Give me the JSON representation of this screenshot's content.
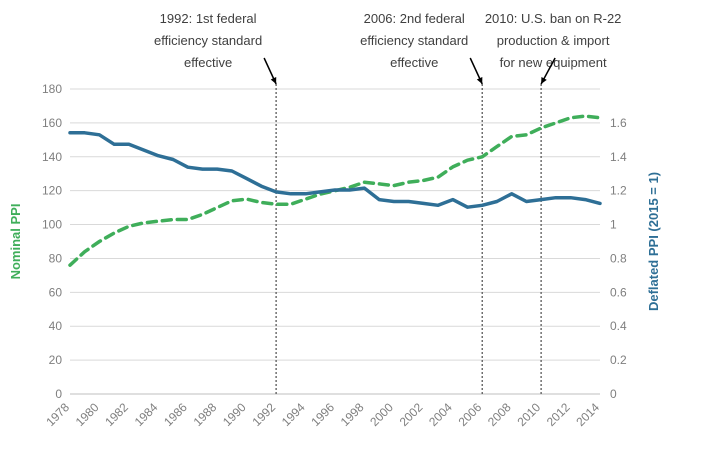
{
  "chart_data": {
    "type": "line",
    "x": [
      1978,
      1979,
      1980,
      1981,
      1982,
      1983,
      1984,
      1985,
      1986,
      1987,
      1988,
      1989,
      1990,
      1991,
      1992,
      1993,
      1994,
      1995,
      1996,
      1997,
      1998,
      1999,
      2000,
      2001,
      2002,
      2003,
      2004,
      2005,
      2006,
      2007,
      2008,
      2009,
      2010,
      2011,
      2012,
      2013,
      2014
    ],
    "x_tick_labels": [
      "1978",
      "1980",
      "1982",
      "1984",
      "1986",
      "1988",
      "1990",
      "1992",
      "1994",
      "1996",
      "1998",
      "2000",
      "2002",
      "2004",
      "2006",
      "2008",
      "2010",
      "2012",
      "2014"
    ],
    "xlim": [
      1978,
      2014
    ],
    "y_left": {
      "label": "Nominal PPI",
      "ylim": [
        0,
        180
      ],
      "ticks": [
        "0",
        "20",
        "40",
        "60",
        "80",
        "100",
        "120",
        "140",
        "160",
        "180"
      ]
    },
    "y_right": {
      "label": "Deflated PPI (2015 = 1)",
      "ylim": [
        0,
        1.6
      ],
      "ticks": [
        "0",
        "0.2",
        "0.4",
        "0.6",
        "0.8",
        "1",
        "1.2",
        "1.4",
        "1.6"
      ]
    },
    "series": [
      {
        "name": "Nominal PPI",
        "axis": "left",
        "style": "dashed",
        "color": "#3fae5a",
        "values": [
          76,
          84,
          90,
          95,
          99,
          101,
          102,
          103,
          103,
          106,
          110,
          114,
          115,
          113,
          112,
          112,
          115,
          118,
          120,
          122,
          125,
          124,
          123,
          125,
          126,
          128,
          134,
          138,
          140,
          146,
          152,
          153,
          157,
          160,
          163,
          164,
          163
        ]
      },
      {
        "name": "Deflated PPI (2015 = 1)",
        "axis": "right",
        "style": "solid",
        "color": "#2e6f96",
        "values": [
          1.37,
          1.37,
          1.36,
          1.31,
          1.31,
          1.28,
          1.25,
          1.23,
          1.19,
          1.18,
          1.18,
          1.17,
          1.13,
          1.09,
          1.06,
          1.05,
          1.05,
          1.06,
          1.07,
          1.07,
          1.08,
          1.02,
          1.01,
          1.01,
          1.0,
          0.99,
          1.02,
          0.98,
          0.99,
          1.01,
          1.05,
          1.01,
          1.02,
          1.03,
          1.03,
          1.02,
          1.0
        ]
      }
    ],
    "annotations": [
      {
        "x": 1992,
        "lines": [
          "1992: 1st federal",
          "efficiency standard",
          "effective"
        ]
      },
      {
        "x": 2006,
        "lines": [
          "2006: 2nd federal",
          "efficiency standard",
          "effective"
        ]
      },
      {
        "x": 2010,
        "lines": [
          "2010: U.S. ban on R-22",
          "production & import",
          "for new equipment"
        ]
      }
    ],
    "grid": "horizontal",
    "legend": "none"
  }
}
